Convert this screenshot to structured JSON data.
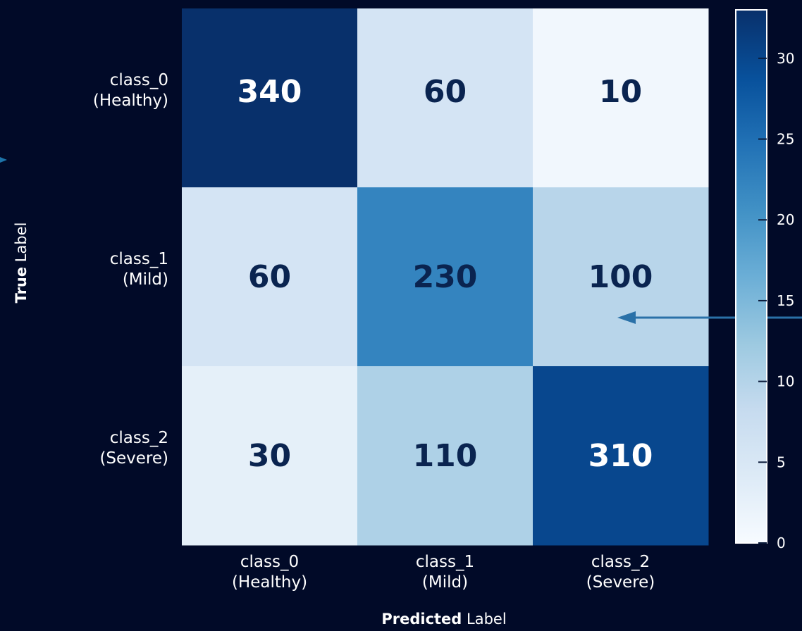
{
  "chart_data": {
    "type": "heatmap",
    "title": "",
    "x_categories": [
      [
        "class_0",
        "(Healthy)"
      ],
      [
        "class_1",
        "(Mild)"
      ],
      [
        "class_2",
        "(Severe)"
      ]
    ],
    "y_categories": [
      [
        "class_0",
        "(Healthy)"
      ],
      [
        "class_1",
        "(Mild)"
      ],
      [
        "class_2",
        "(Severe)"
      ]
    ],
    "values": [
      [
        340,
        60,
        10
      ],
      [
        60,
        230,
        100
      ],
      [
        30,
        110,
        310
      ]
    ],
    "xlabel_bold": "Predicted",
    "xlabel_rest": " Label",
    "ylabel_bold": "True",
    "ylabel_rest": " Label",
    "colorbar": {
      "min": 0,
      "max": 33,
      "ticks": [
        0,
        5,
        10,
        15,
        20,
        25,
        30
      ]
    },
    "colormap": [
      "#f7fbff",
      "#deebf7",
      "#c6dbef",
      "#9ecae1",
      "#6baed6",
      "#4292c6",
      "#2171b5",
      "#08519c",
      "#08306b"
    ],
    "background": "#010a28"
  }
}
